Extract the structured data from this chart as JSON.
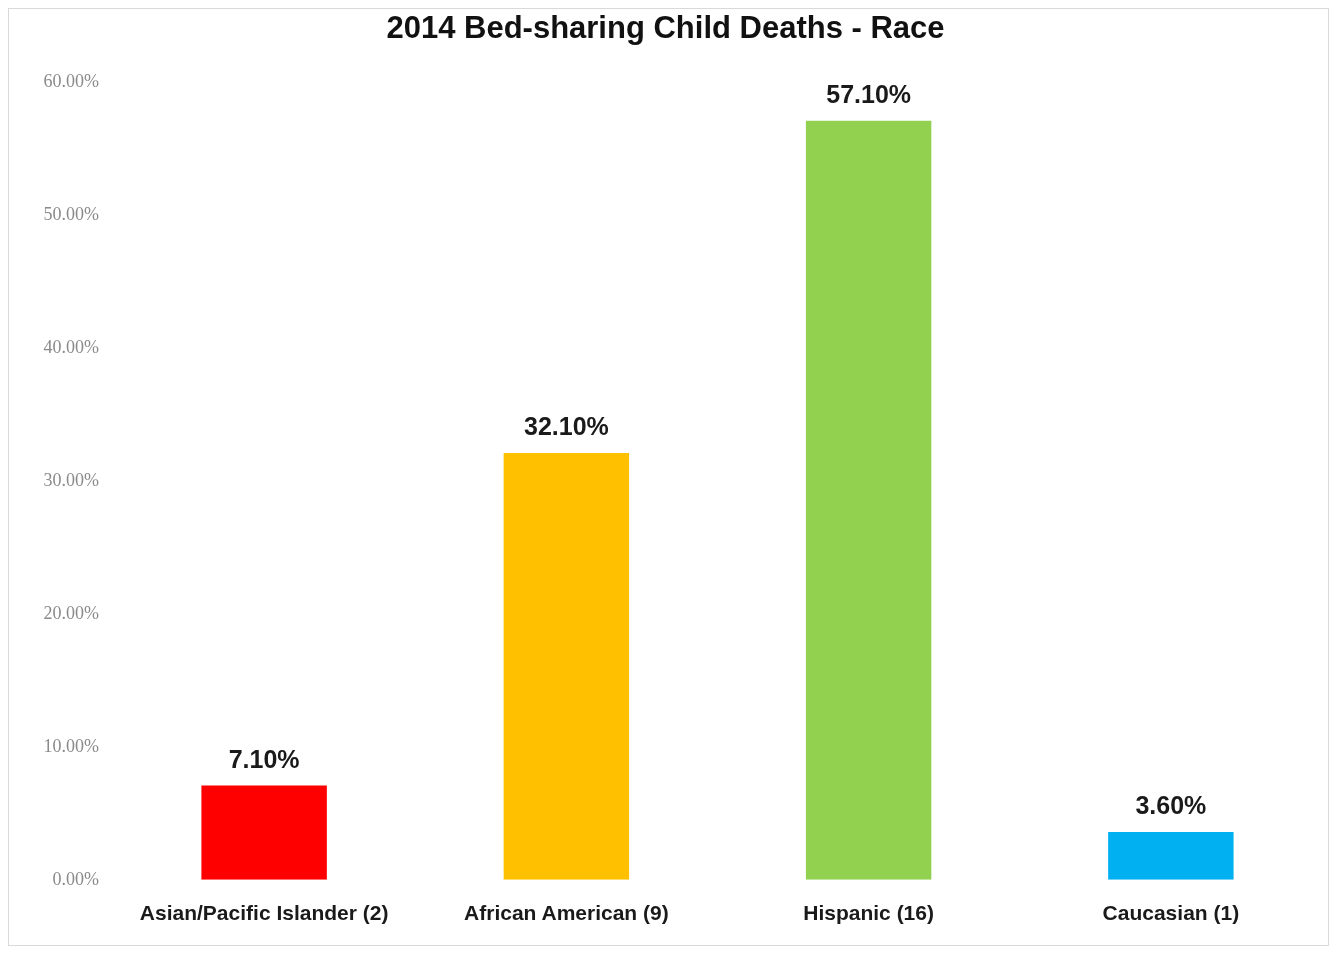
{
  "chart_data": {
    "type": "bar",
    "title": "2014 Bed-sharing Child Deaths - Race",
    "categories": [
      "Asian/Pacific Islander (2)",
      "African American (9)",
      "Hispanic (16)",
      "Caucasian (1)"
    ],
    "values": [
      7.1,
      32.1,
      57.1,
      3.6
    ],
    "colors": [
      "#ff0000",
      "#ffc000",
      "#92d050",
      "#00b0f0"
    ],
    "value_labels": [
      "7.10%",
      "32.10%",
      "57.10%",
      "3.60%"
    ],
    "ylim": [
      0,
      60
    ],
    "yticks": [
      {
        "value": 0,
        "label": "0.00%"
      },
      {
        "value": 10,
        "label": "10.00%"
      },
      {
        "value": 20,
        "label": "20.00%"
      },
      {
        "value": 30,
        "label": "30.00%"
      },
      {
        "value": 40,
        "label": "40.00%"
      },
      {
        "value": 50,
        "label": "50.00%"
      },
      {
        "value": 60,
        "label": "60.00%"
      }
    ]
  }
}
